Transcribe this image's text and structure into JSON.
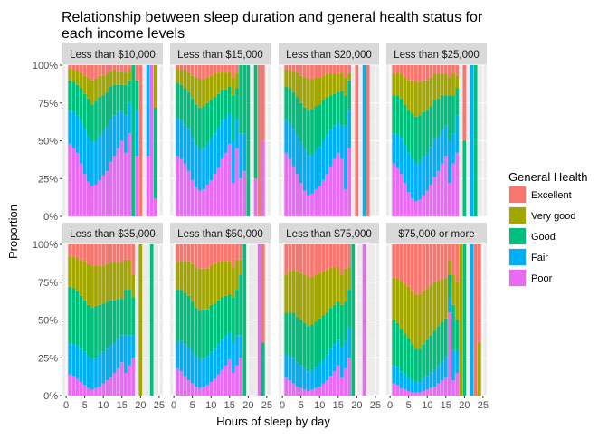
{
  "chart_data": {
    "type": "bar",
    "stacked": true,
    "normalized": true,
    "title": "Relationship between sleep duration and general health status for each income levels",
    "title_lines": [
      "Relationship between sleep duration and general health status for",
      "each income levels"
    ],
    "xlabel": "Hours of sleep by day",
    "ylabel": "Proportion",
    "xlim": [
      0,
      25
    ],
    "ylim": [
      0,
      1
    ],
    "x_ticks": [
      0,
      5,
      10,
      15,
      20,
      25
    ],
    "y_ticks": [
      "0%",
      "25%",
      "50%",
      "75%",
      "100%"
    ],
    "grid": true,
    "legend_title": "General Health",
    "legend_position": "right",
    "categories": [
      "Excellent",
      "Very good",
      "Good",
      "Fair",
      "Poor"
    ],
    "colors": {
      "Excellent": "#F8766D",
      "Very good": "#A3A500",
      "Good": "#00BF7D",
      "Fair": "#00B0F6",
      "Poor": "#E76BF3"
    },
    "facets": [
      {
        "label": "Less than $10,000",
        "hours": [
          1,
          2,
          3,
          4,
          5,
          6,
          7,
          8,
          9,
          10,
          11,
          12,
          13,
          14,
          15,
          16,
          17,
          18,
          19,
          20,
          22,
          23,
          24
        ],
        "poor": [
          0.48,
          0.45,
          0.42,
          0.35,
          0.28,
          0.23,
          0.2,
          0.21,
          0.24,
          0.27,
          0.3,
          0.36,
          0.4,
          0.45,
          0.5,
          0.42,
          0.55,
          0.0,
          0.4,
          0.0,
          0.4,
          1.0,
          0.12
        ],
        "fair": [
          0.22,
          0.24,
          0.25,
          0.28,
          0.3,
          0.3,
          0.29,
          0.29,
          0.29,
          0.29,
          0.29,
          0.28,
          0.27,
          0.24,
          0.2,
          0.25,
          0.2,
          0.0,
          0.3,
          0.0,
          0.6,
          0.0,
          0.0
        ],
        "good": [
          0.2,
          0.2,
          0.2,
          0.22,
          0.23,
          0.25,
          0.25,
          0.26,
          0.26,
          0.24,
          0.23,
          0.22,
          0.2,
          0.18,
          0.17,
          0.2,
          0.15,
          1.0,
          0.2,
          0.0,
          0.0,
          0.0,
          0.6
        ],
        "vgood": [
          0.08,
          0.08,
          0.1,
          0.1,
          0.12,
          0.14,
          0.16,
          0.15,
          0.14,
          0.13,
          0.12,
          0.1,
          0.1,
          0.09,
          0.09,
          0.08,
          0.07,
          0.0,
          0.0,
          0.0,
          0.0,
          0.0,
          0.28
        ],
        "excel": [
          0.02,
          0.03,
          0.03,
          0.05,
          0.07,
          0.08,
          0.1,
          0.09,
          0.07,
          0.07,
          0.06,
          0.04,
          0.03,
          0.04,
          0.04,
          0.05,
          0.03,
          0.0,
          0.1,
          1.0,
          0.0,
          0.0,
          0.0
        ]
      },
      {
        "label": "Less than $15,000",
        "hours": [
          1,
          2,
          3,
          4,
          5,
          6,
          7,
          8,
          9,
          10,
          11,
          12,
          13,
          14,
          15,
          16,
          17,
          18,
          19,
          20,
          22,
          23,
          24
        ],
        "poor": [
          0.4,
          0.38,
          0.35,
          0.3,
          0.24,
          0.19,
          0.17,
          0.18,
          0.21,
          0.24,
          0.28,
          0.32,
          0.38,
          0.42,
          0.48,
          0.22,
          0.45,
          0.25,
          0.3,
          0.0,
          0.25,
          0.0,
          0.5
        ],
        "fair": [
          0.25,
          0.26,
          0.26,
          0.28,
          0.28,
          0.28,
          0.27,
          0.27,
          0.27,
          0.27,
          0.27,
          0.27,
          0.25,
          0.23,
          0.2,
          0.28,
          0.2,
          0.3,
          0.25,
          0.0,
          0.0,
          0.0,
          0.0
        ],
        "good": [
          0.23,
          0.23,
          0.24,
          0.24,
          0.26,
          0.27,
          0.28,
          0.28,
          0.27,
          0.26,
          0.24,
          0.22,
          0.21,
          0.19,
          0.18,
          0.3,
          0.2,
          0.45,
          0.45,
          1.0,
          0.75,
          0.0,
          0.0
        ],
        "vgood": [
          0.1,
          0.1,
          0.12,
          0.13,
          0.15,
          0.18,
          0.19,
          0.18,
          0.17,
          0.16,
          0.15,
          0.14,
          0.12,
          0.11,
          0.1,
          0.12,
          0.1,
          0.0,
          0.0,
          0.0,
          0.0,
          0.0,
          0.0
        ],
        "excel": [
          0.02,
          0.03,
          0.03,
          0.05,
          0.07,
          0.08,
          0.09,
          0.09,
          0.08,
          0.07,
          0.06,
          0.05,
          0.04,
          0.05,
          0.04,
          0.08,
          0.05,
          0.0,
          0.0,
          0.0,
          0.0,
          1.0,
          0.5
        ]
      },
      {
        "label": "Less than $20,000",
        "hours": [
          1,
          2,
          3,
          4,
          5,
          6,
          7,
          8,
          9,
          10,
          11,
          12,
          13,
          14,
          15,
          16,
          17,
          18,
          19,
          20,
          22,
          23,
          24
        ],
        "poor": [
          0.42,
          0.38,
          0.33,
          0.28,
          0.22,
          0.17,
          0.14,
          0.15,
          0.18,
          0.2,
          0.24,
          0.28,
          0.33,
          0.38,
          0.42,
          0.38,
          0.18,
          0.45,
          0.0,
          0.0,
          0.0,
          0.0,
          0.0
        ],
        "fair": [
          0.22,
          0.24,
          0.25,
          0.26,
          0.27,
          0.27,
          0.26,
          0.26,
          0.26,
          0.26,
          0.26,
          0.26,
          0.24,
          0.22,
          0.2,
          0.22,
          0.42,
          0.25,
          0.0,
          0.0,
          1.0,
          0.0,
          0.0
        ],
        "good": [
          0.22,
          0.23,
          0.24,
          0.25,
          0.26,
          0.28,
          0.3,
          0.3,
          0.29,
          0.28,
          0.27,
          0.25,
          0.23,
          0.21,
          0.2,
          0.23,
          0.2,
          0.2,
          0.0,
          0.0,
          0.0,
          0.0,
          0.0
        ],
        "vgood": [
          0.11,
          0.12,
          0.14,
          0.16,
          0.18,
          0.2,
          0.21,
          0.2,
          0.19,
          0.18,
          0.16,
          0.15,
          0.14,
          0.13,
          0.12,
          0.12,
          0.12,
          0.05,
          0.0,
          0.0,
          0.0,
          0.0,
          0.0
        ],
        "excel": [
          0.03,
          0.03,
          0.04,
          0.05,
          0.07,
          0.08,
          0.09,
          0.09,
          0.08,
          0.08,
          0.07,
          0.06,
          0.06,
          0.06,
          0.06,
          0.05,
          0.08,
          0.05,
          0.0,
          1.0,
          0.0,
          1.0,
          0.0
        ]
      },
      {
        "label": "Less than $25,000",
        "hours": [
          1,
          2,
          3,
          4,
          5,
          6,
          7,
          8,
          9,
          10,
          11,
          12,
          13,
          14,
          15,
          16,
          17,
          18,
          19,
          20,
          22,
          23,
          24
        ],
        "poor": [
          0.35,
          0.32,
          0.28,
          0.22,
          0.16,
          0.12,
          0.1,
          0.11,
          0.14,
          0.17,
          0.21,
          0.26,
          0.3,
          0.35,
          0.4,
          0.22,
          0.35,
          0.42,
          0.0,
          0.0,
          0.0,
          0.0,
          0.0
        ],
        "fair": [
          0.2,
          0.22,
          0.24,
          0.25,
          0.26,
          0.26,
          0.25,
          0.25,
          0.25,
          0.25,
          0.25,
          0.25,
          0.23,
          0.22,
          0.2,
          0.28,
          0.2,
          0.25,
          0.0,
          0.0,
          1.0,
          0.0,
          0.0
        ],
        "good": [
          0.25,
          0.26,
          0.26,
          0.27,
          0.28,
          0.3,
          0.31,
          0.31,
          0.3,
          0.28,
          0.27,
          0.26,
          0.25,
          0.23,
          0.2,
          0.3,
          0.25,
          0.18,
          0.0,
          0.5,
          0.0,
          1.0,
          0.0
        ],
        "vgood": [
          0.14,
          0.15,
          0.16,
          0.18,
          0.2,
          0.22,
          0.23,
          0.22,
          0.21,
          0.2,
          0.19,
          0.17,
          0.16,
          0.14,
          0.14,
          0.12,
          0.15,
          0.08,
          0.0,
          0.0,
          0.0,
          0.0,
          0.0
        ],
        "excel": [
          0.06,
          0.05,
          0.06,
          0.08,
          0.1,
          0.1,
          0.11,
          0.11,
          0.1,
          0.1,
          0.08,
          0.06,
          0.06,
          0.06,
          0.06,
          0.08,
          0.05,
          0.07,
          0.0,
          0.5,
          0.0,
          0.0,
          0.0
        ]
      },
      {
        "label": "Less than $35,000",
        "hours": [
          1,
          2,
          3,
          4,
          5,
          6,
          7,
          8,
          9,
          10,
          11,
          12,
          13,
          14,
          15,
          16,
          17,
          18,
          19,
          20,
          22,
          23,
          24
        ],
        "poor": [
          0.14,
          0.13,
          0.11,
          0.09,
          0.07,
          0.05,
          0.04,
          0.05,
          0.06,
          0.08,
          0.1,
          0.12,
          0.15,
          0.18,
          0.22,
          0.15,
          0.2,
          0.25,
          0.0,
          0.0,
          0.0,
          0.0,
          0.0
        ],
        "fair": [
          0.2,
          0.21,
          0.22,
          0.22,
          0.22,
          0.21,
          0.2,
          0.2,
          0.21,
          0.21,
          0.21,
          0.21,
          0.2,
          0.2,
          0.18,
          0.25,
          0.2,
          0.15,
          0.0,
          0.0,
          0.0,
          0.0,
          0.0
        ],
        "good": [
          0.38,
          0.37,
          0.36,
          0.35,
          0.34,
          0.34,
          0.34,
          0.34,
          0.33,
          0.32,
          0.31,
          0.3,
          0.28,
          0.26,
          0.24,
          0.3,
          0.3,
          0.25,
          0.0,
          0.0,
          0.0,
          1.0,
          0.0
        ],
        "vgood": [
          0.2,
          0.21,
          0.22,
          0.24,
          0.26,
          0.27,
          0.28,
          0.27,
          0.26,
          0.25,
          0.25,
          0.25,
          0.25,
          0.24,
          0.24,
          0.2,
          0.2,
          0.15,
          0.0,
          1.0,
          0.0,
          0.0,
          0.0
        ],
        "excel": [
          0.08,
          0.08,
          0.09,
          0.1,
          0.11,
          0.13,
          0.14,
          0.14,
          0.14,
          0.14,
          0.13,
          0.12,
          0.12,
          0.12,
          0.12,
          0.1,
          0.1,
          0.2,
          0.0,
          0.0,
          0.0,
          0.0,
          0.0
        ]
      },
      {
        "label": "Less than $50,000",
        "hours": [
          1,
          2,
          3,
          4,
          5,
          6,
          7,
          8,
          9,
          10,
          11,
          12,
          13,
          14,
          15,
          16,
          17,
          18,
          19,
          20,
          22,
          23,
          24
        ],
        "poor": [
          0.18,
          0.16,
          0.13,
          0.1,
          0.08,
          0.06,
          0.05,
          0.06,
          0.07,
          0.09,
          0.11,
          0.14,
          0.17,
          0.2,
          0.24,
          0.15,
          0.2,
          0.25,
          0.0,
          0.0,
          0.0,
          1.0,
          0.0
        ],
        "fair": [
          0.18,
          0.2,
          0.21,
          0.22,
          0.21,
          0.2,
          0.19,
          0.19,
          0.19,
          0.2,
          0.2,
          0.2,
          0.2,
          0.19,
          0.18,
          0.2,
          0.2,
          0.15,
          0.0,
          0.0,
          0.0,
          0.0,
          0.0
        ],
        "good": [
          0.34,
          0.34,
          0.34,
          0.34,
          0.33,
          0.32,
          0.32,
          0.32,
          0.31,
          0.31,
          0.3,
          0.29,
          0.28,
          0.27,
          0.25,
          0.3,
          0.3,
          0.4,
          1.0,
          0.0,
          0.0,
          0.0,
          0.35
        ],
        "vgood": [
          0.18,
          0.19,
          0.21,
          0.23,
          0.25,
          0.27,
          0.28,
          0.27,
          0.27,
          0.26,
          0.26,
          0.25,
          0.24,
          0.23,
          0.22,
          0.2,
          0.2,
          0.1,
          0.0,
          0.0,
          0.0,
          0.0,
          0.0
        ],
        "excel": [
          0.12,
          0.11,
          0.11,
          0.11,
          0.13,
          0.15,
          0.16,
          0.16,
          0.16,
          0.14,
          0.13,
          0.12,
          0.11,
          0.11,
          0.11,
          0.15,
          0.1,
          0.1,
          0.0,
          0.0,
          0.0,
          0.0,
          0.65
        ]
      },
      {
        "label": "Less than $75,000",
        "hours": [
          1,
          2,
          3,
          4,
          5,
          6,
          7,
          8,
          9,
          10,
          11,
          12,
          13,
          14,
          15,
          16,
          17,
          18,
          19,
          20,
          22,
          23,
          24
        ],
        "poor": [
          0.12,
          0.1,
          0.08,
          0.06,
          0.05,
          0.04,
          0.03,
          0.04,
          0.05,
          0.06,
          0.08,
          0.1,
          0.13,
          0.16,
          0.2,
          0.12,
          0.18,
          0.25,
          0.0,
          0.0,
          1.0,
          0.0,
          0.0
        ],
        "fair": [
          0.15,
          0.16,
          0.17,
          0.16,
          0.15,
          0.14,
          0.13,
          0.13,
          0.14,
          0.15,
          0.16,
          0.17,
          0.18,
          0.18,
          0.17,
          0.2,
          0.18,
          0.2,
          0.0,
          0.0,
          0.0,
          0.0,
          0.0
        ],
        "good": [
          0.28,
          0.29,
          0.3,
          0.3,
          0.3,
          0.3,
          0.3,
          0.3,
          0.3,
          0.3,
          0.29,
          0.28,
          0.27,
          0.26,
          0.25,
          0.28,
          0.26,
          0.25,
          1.0,
          0.0,
          0.0,
          0.0,
          0.0
        ],
        "vgood": [
          0.25,
          0.27,
          0.28,
          0.3,
          0.31,
          0.32,
          0.33,
          0.32,
          0.31,
          0.3,
          0.29,
          0.28,
          0.27,
          0.25,
          0.23,
          0.2,
          0.22,
          0.15,
          0.0,
          0.0,
          0.0,
          0.0,
          0.0
        ],
        "excel": [
          0.2,
          0.18,
          0.17,
          0.18,
          0.19,
          0.2,
          0.21,
          0.21,
          0.2,
          0.19,
          0.18,
          0.17,
          0.15,
          0.15,
          0.15,
          0.2,
          0.16,
          0.15,
          0.0,
          0.0,
          0.0,
          0.0,
          0.0
        ]
      },
      {
        "label": "$75,000 or more",
        "hours": [
          1,
          2,
          3,
          4,
          5,
          6,
          7,
          8,
          9,
          10,
          11,
          12,
          13,
          14,
          15,
          16,
          17,
          18,
          19,
          20,
          22,
          23,
          24
        ],
        "poor": [
          0.08,
          0.07,
          0.05,
          0.04,
          0.03,
          0.02,
          0.02,
          0.02,
          0.03,
          0.04,
          0.05,
          0.06,
          0.08,
          0.1,
          0.12,
          0.55,
          0.1,
          0.15,
          0.0,
          0.0,
          0.0,
          0.0,
          0.0
        ],
        "fair": [
          0.12,
          0.12,
          0.11,
          0.1,
          0.09,
          0.08,
          0.07,
          0.07,
          0.08,
          0.09,
          0.1,
          0.11,
          0.12,
          0.13,
          0.14,
          0.1,
          0.2,
          0.15,
          0.0,
          0.0,
          1.0,
          0.0,
          0.0
        ],
        "good": [
          0.3,
          0.29,
          0.28,
          0.27,
          0.26,
          0.24,
          0.22,
          0.22,
          0.23,
          0.24,
          0.25,
          0.26,
          0.26,
          0.26,
          0.25,
          0.15,
          0.3,
          0.2,
          0.0,
          1.0,
          0.0,
          0.0,
          0.0
        ],
        "vgood": [
          0.28,
          0.3,
          0.32,
          0.33,
          0.34,
          0.35,
          0.36,
          0.36,
          0.35,
          0.34,
          0.33,
          0.32,
          0.3,
          0.28,
          0.27,
          0.1,
          0.2,
          0.25,
          1.0,
          0.0,
          0.0,
          0.0,
          0.35
        ],
        "excel": [
          0.22,
          0.22,
          0.24,
          0.26,
          0.28,
          0.31,
          0.33,
          0.33,
          0.31,
          0.29,
          0.27,
          0.25,
          0.24,
          0.23,
          0.22,
          0.1,
          0.2,
          0.25,
          0.0,
          0.0,
          0.0,
          1.0,
          0.65
        ]
      }
    ]
  }
}
